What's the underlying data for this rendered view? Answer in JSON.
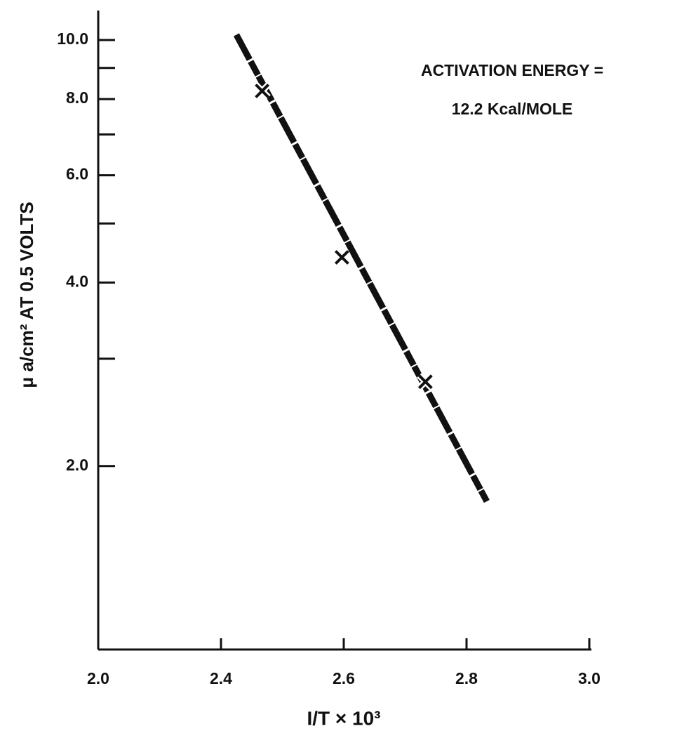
{
  "chart_data": {
    "type": "scatter",
    "annotation": [
      "ACTIVATION ENERGY =",
      "12.2 Kcal/MOLE"
    ],
    "x_label": "I/T × 10³",
    "y_label": "μ a/cm² AT 0.5 VOLTS",
    "x": [
      2.467,
      2.597,
      2.733
    ],
    "values": [
      8.25,
      4.4,
      2.75
    ],
    "fit_line": {
      "x": [
        2.425,
        2.833
      ],
      "y": [
        10.2,
        1.75
      ]
    },
    "color": "#111111",
    "xlim": [
      2.2,
      3.0
    ],
    "xticks": [
      2.4,
      2.6,
      2.8,
      {
        "value": 3,
        "label": "3.0"
      }
    ],
    "x_origin_label": "2.0",
    "ylim": [
      1,
      10
    ],
    "yscale": "log",
    "yticks": [
      {
        "value": 2,
        "label": "2.0"
      },
      {
        "value": 4,
        "label": "4.0"
      },
      {
        "value": 6,
        "label": "6.0"
      },
      {
        "value": 8,
        "label": "8.0"
      },
      {
        "value": 10,
        "label": "10.0"
      }
    ],
    "yminor_ticks": [
      3,
      5,
      7,
      9
    ]
  }
}
